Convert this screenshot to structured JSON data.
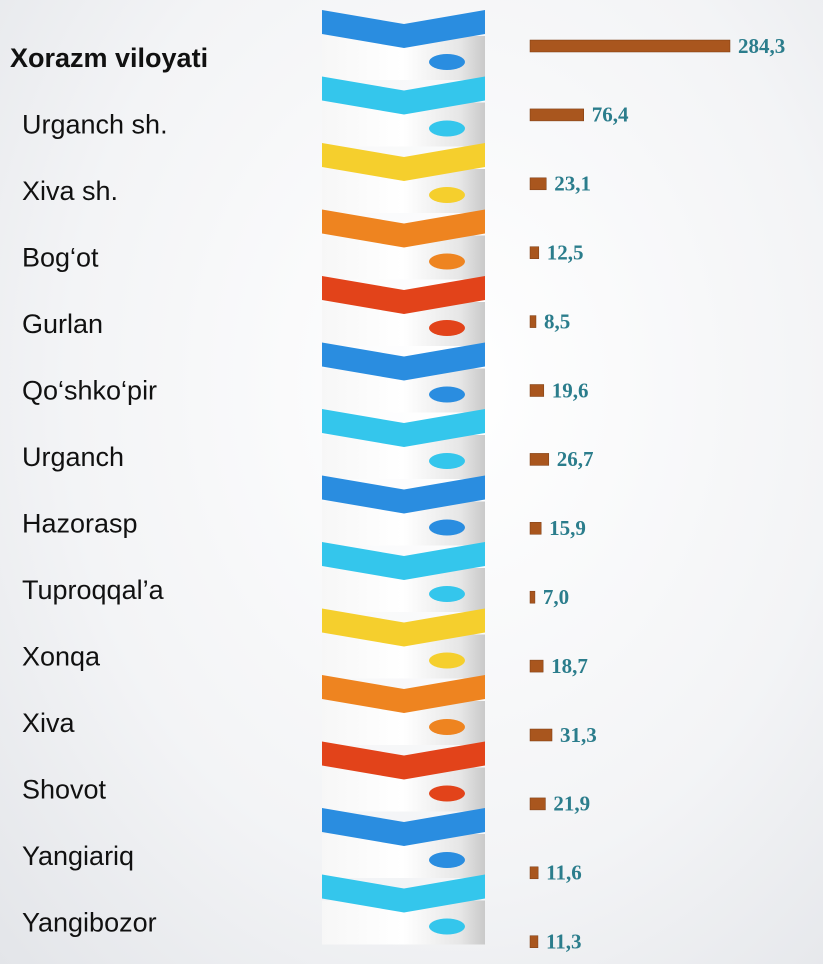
{
  "chart_data": {
    "type": "bar",
    "orientation": "horizontal",
    "categories": [
      "Xorazm viloyati",
      "Urganch sh.",
      "Xiva sh.",
      "Bog‘ot",
      "Gurlan",
      "Qo‘shko‘pir",
      "Urganch",
      "Hazorasp",
      "Tuproqqal’a",
      "Xonqa",
      "Xiva",
      "Shovot",
      "Yangiariq",
      "Yangibozor"
    ],
    "values": [
      284.3,
      76.4,
      23.1,
      12.5,
      8.5,
      19.6,
      26.7,
      15.9,
      7.0,
      18.7,
      31.3,
      21.9,
      11.6,
      11.3
    ],
    "value_labels": [
      "284,3",
      "76,4",
      "23,1",
      "12,5",
      "8,5",
      "19,6",
      "26,7",
      "15,9",
      "7,0",
      "18,7",
      "31,3",
      "21,9",
      "11,6",
      "11,3"
    ],
    "color": "#a9561e"
  }
}
